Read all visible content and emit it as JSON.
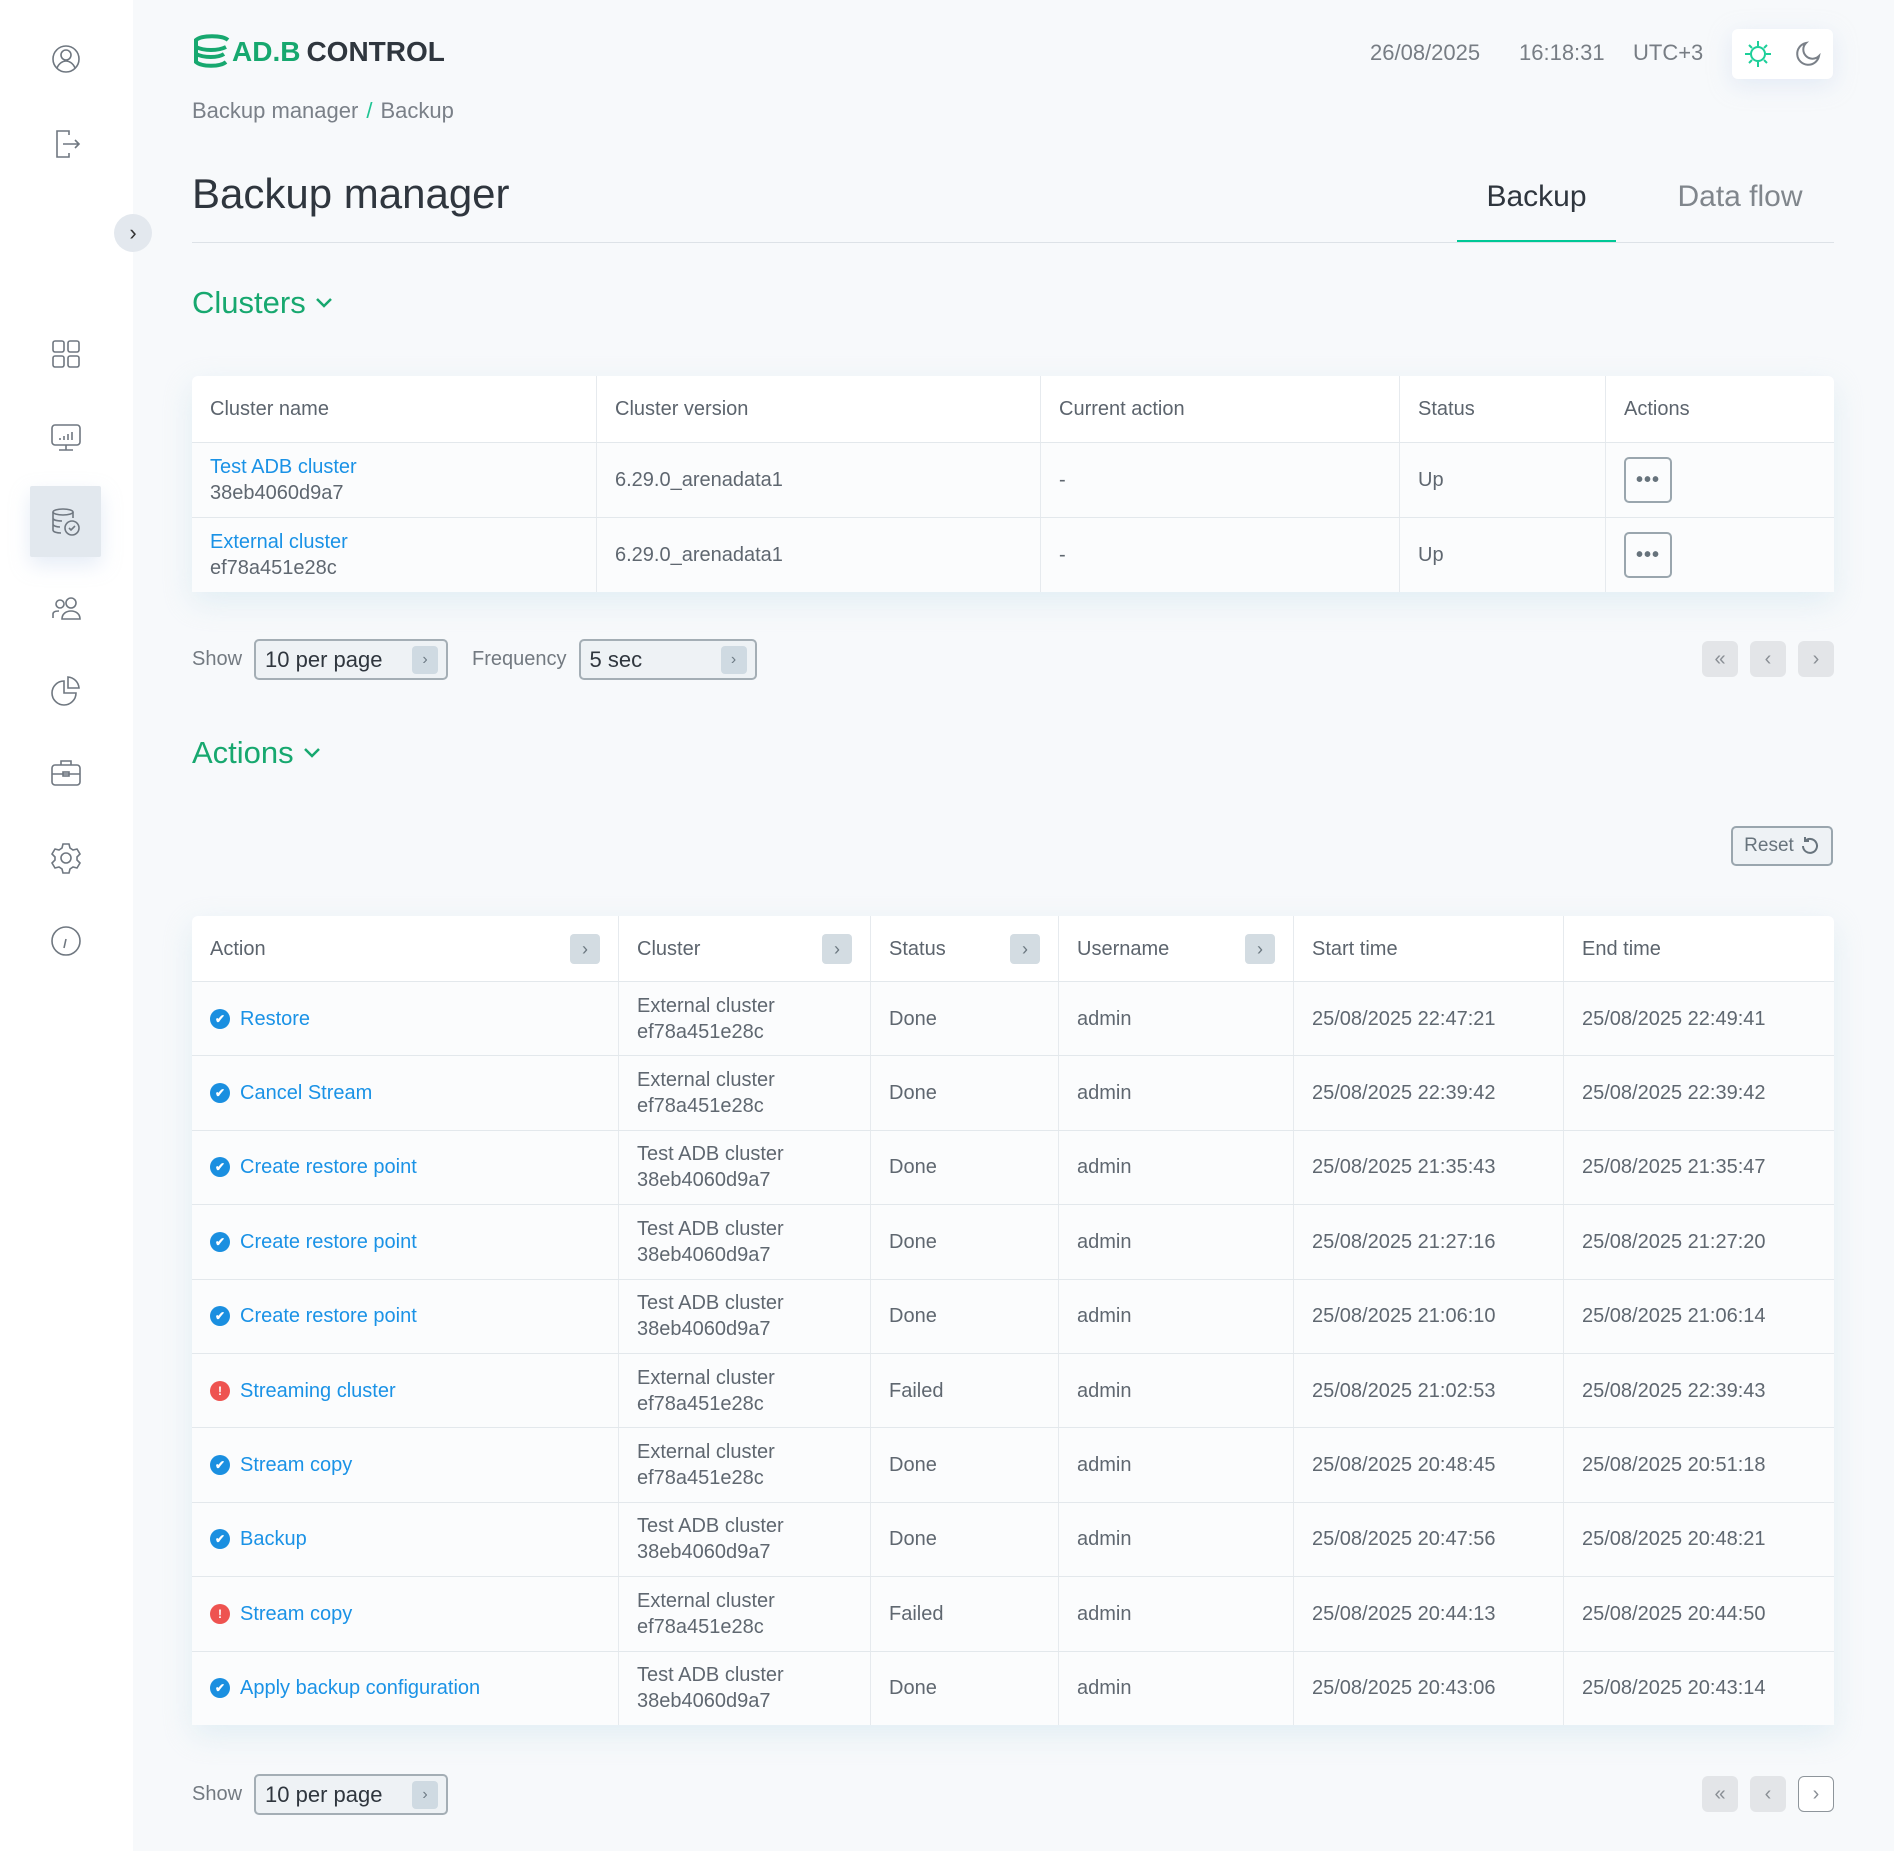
{
  "app": {
    "logo": "AD.B CONTROL",
    "logo_parts": [
      "AD.B",
      "CONTROL"
    ]
  },
  "header": {
    "date": "26/08/2025",
    "time": "16:18:31",
    "timezone": "UTC+3",
    "theme": {
      "light_icon": "sun-icon",
      "dark_icon": "moon-icon",
      "active": "light"
    }
  },
  "sidebar": {
    "items": [
      {
        "icon": "user-icon"
      },
      {
        "icon": "logout-icon"
      },
      {
        "icon": "dashboard-icon"
      },
      {
        "icon": "monitoring-icon"
      },
      {
        "icon": "backup-manager-icon",
        "active": true
      },
      {
        "icon": "users-icon"
      },
      {
        "icon": "pie-chart-icon"
      },
      {
        "icon": "briefcase-icon"
      },
      {
        "icon": "settings-icon"
      },
      {
        "icon": "info-icon"
      }
    ]
  },
  "breadcrumb": [
    "Backup manager",
    "Backup"
  ],
  "page": {
    "title": "Backup manager",
    "tabs": [
      {
        "label": "Backup",
        "active": true
      },
      {
        "label": "Data flow",
        "active": false
      }
    ]
  },
  "colors": {
    "accent": "#17a86f",
    "tab_underline": "#00c896",
    "link": "#1a92e6",
    "done": "#1a8fe0",
    "failed": "#ee5350"
  },
  "clusters": {
    "heading": "Clusters",
    "columns": [
      "Cluster name",
      "Cluster version",
      "Current action",
      "Status",
      "Actions"
    ],
    "rows": [
      {
        "name": "Test ADB cluster",
        "id": "38eb4060d9a7",
        "version": "6.29.0_arenadata1",
        "current_action": "-",
        "status": "Up"
      },
      {
        "name": "External cluster",
        "id": "ef78a451e28c",
        "version": "6.29.0_arenadata1",
        "current_action": "-",
        "status": "Up"
      }
    ],
    "show_label": "Show",
    "per_page": "10 per page",
    "frequency_label": "Frequency",
    "frequency": "5 sec"
  },
  "actions": {
    "heading": "Actions",
    "reset_label": "Reset",
    "columns": [
      "Action",
      "Cluster",
      "Status",
      "Username",
      "Start time",
      "End time"
    ],
    "rows": [
      {
        "action": "Restore",
        "state": "done",
        "cluster": "External cluster",
        "cluster_id": "ef78a451e28c",
        "status": "Done",
        "user": "admin",
        "start": "25/08/2025 22:47:21",
        "end": "25/08/2025 22:49:41"
      },
      {
        "action": "Cancel Stream",
        "state": "done",
        "cluster": "External cluster",
        "cluster_id": "ef78a451e28c",
        "status": "Done",
        "user": "admin",
        "start": "25/08/2025 22:39:42",
        "end": "25/08/2025 22:39:42"
      },
      {
        "action": "Create restore point",
        "state": "done",
        "cluster": "Test ADB cluster",
        "cluster_id": "38eb4060d9a7",
        "status": "Done",
        "user": "admin",
        "start": "25/08/2025 21:35:43",
        "end": "25/08/2025 21:35:47"
      },
      {
        "action": "Create restore point",
        "state": "done",
        "cluster": "Test ADB cluster",
        "cluster_id": "38eb4060d9a7",
        "status": "Done",
        "user": "admin",
        "start": "25/08/2025 21:27:16",
        "end": "25/08/2025 21:27:20"
      },
      {
        "action": "Create restore point",
        "state": "done",
        "cluster": "Test ADB cluster",
        "cluster_id": "38eb4060d9a7",
        "status": "Done",
        "user": "admin",
        "start": "25/08/2025 21:06:10",
        "end": "25/08/2025 21:06:14"
      },
      {
        "action": "Streaming cluster",
        "state": "failed",
        "cluster": "External cluster",
        "cluster_id": "ef78a451e28c",
        "status": "Failed",
        "user": "admin",
        "start": "25/08/2025 21:02:53",
        "end": "25/08/2025 22:39:43"
      },
      {
        "action": "Stream copy",
        "state": "done",
        "cluster": "External cluster",
        "cluster_id": "ef78a451e28c",
        "status": "Done",
        "user": "admin",
        "start": "25/08/2025 20:48:45",
        "end": "25/08/2025 20:51:18"
      },
      {
        "action": "Backup",
        "state": "done",
        "cluster": "Test ADB cluster",
        "cluster_id": "38eb4060d9a7",
        "status": "Done",
        "user": "admin",
        "start": "25/08/2025 20:47:56",
        "end": "25/08/2025 20:48:21"
      },
      {
        "action": "Stream copy",
        "state": "failed",
        "cluster": "External cluster",
        "cluster_id": "ef78a451e28c",
        "status": "Failed",
        "user": "admin",
        "start": "25/08/2025 20:44:13",
        "end": "25/08/2025 20:44:50"
      },
      {
        "action": "Apply backup configuration",
        "state": "done",
        "cluster": "Test ADB cluster",
        "cluster_id": "38eb4060d9a7",
        "status": "Done",
        "user": "admin",
        "start": "25/08/2025 20:43:06",
        "end": "25/08/2025 20:43:14"
      }
    ],
    "show_label": "Show",
    "per_page": "10 per page"
  }
}
